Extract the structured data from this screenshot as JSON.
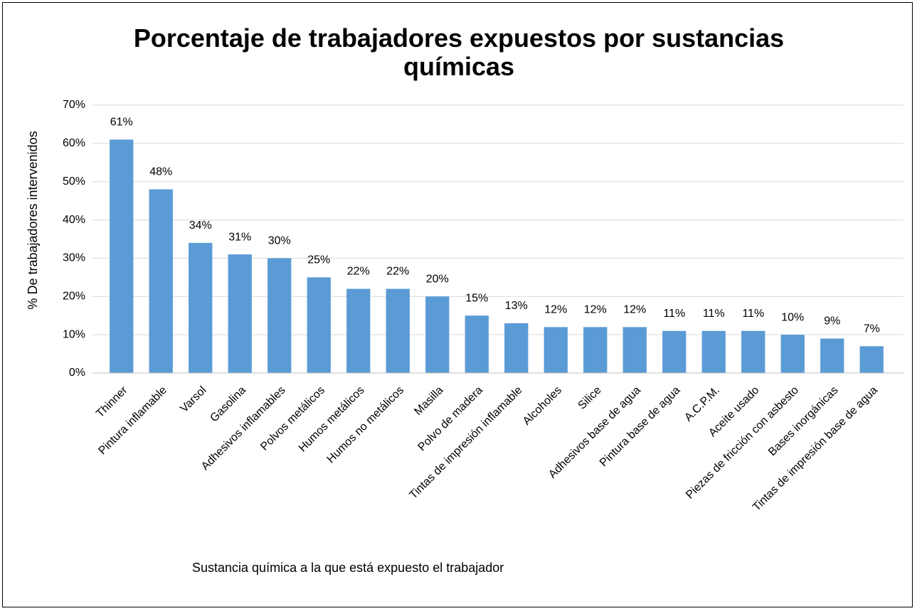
{
  "chart_data": {
    "type": "bar",
    "title": "Porcentaje de trabajadores expuestos por sustancias químicas",
    "x_label": "Sustancia química a la que está expuesto el trabajador",
    "y_label": "% De trabajadores intervenidos",
    "categories": [
      "Thinner",
      "Pintura inflamable",
      "Varsol",
      "Gasolina",
      "Adhesivos inflamables",
      "Polvos metálicos",
      "Humos metálicos",
      "Humos no metálicos",
      "Masilla",
      "Polvo de madera",
      "Tintas de impresión inflamable",
      "Alcoholes",
      "Silice",
      "Adhesivos base de agua",
      "Pintura base de agua",
      "A.C.P.M.",
      "Aceite usado",
      "Piezas de fricción con asbesto",
      "Bases inorgánicas",
      "Tintas de impresión base de agua"
    ],
    "values": [
      61,
      48,
      34,
      31,
      30,
      25,
      22,
      22,
      20,
      15,
      13,
      12,
      12,
      12,
      11,
      11,
      11,
      10,
      9,
      7
    ],
    "value_labels": [
      "61%",
      "48%",
      "34%",
      "31%",
      "30%",
      "25%",
      "22%",
      "22%",
      "20%",
      "15%",
      "13%",
      "12%",
      "12%",
      "12%",
      "11%",
      "11%",
      "11%",
      "10%",
      "9%",
      "7%"
    ],
    "color": "#5b9bd5",
    "ylim": [
      0,
      70
    ],
    "yticks": [
      {
        "value": 0,
        "label": "0%"
      },
      {
        "value": 10,
        "label": "10%"
      },
      {
        "value": 20,
        "label": "20%"
      },
      {
        "value": 30,
        "label": "30%"
      },
      {
        "value": 40,
        "label": "40%"
      },
      {
        "value": 50,
        "label": "50%"
      },
      {
        "value": 60,
        "label": "60%"
      },
      {
        "value": 70,
        "label": "70%"
      }
    ],
    "grid": true
  }
}
